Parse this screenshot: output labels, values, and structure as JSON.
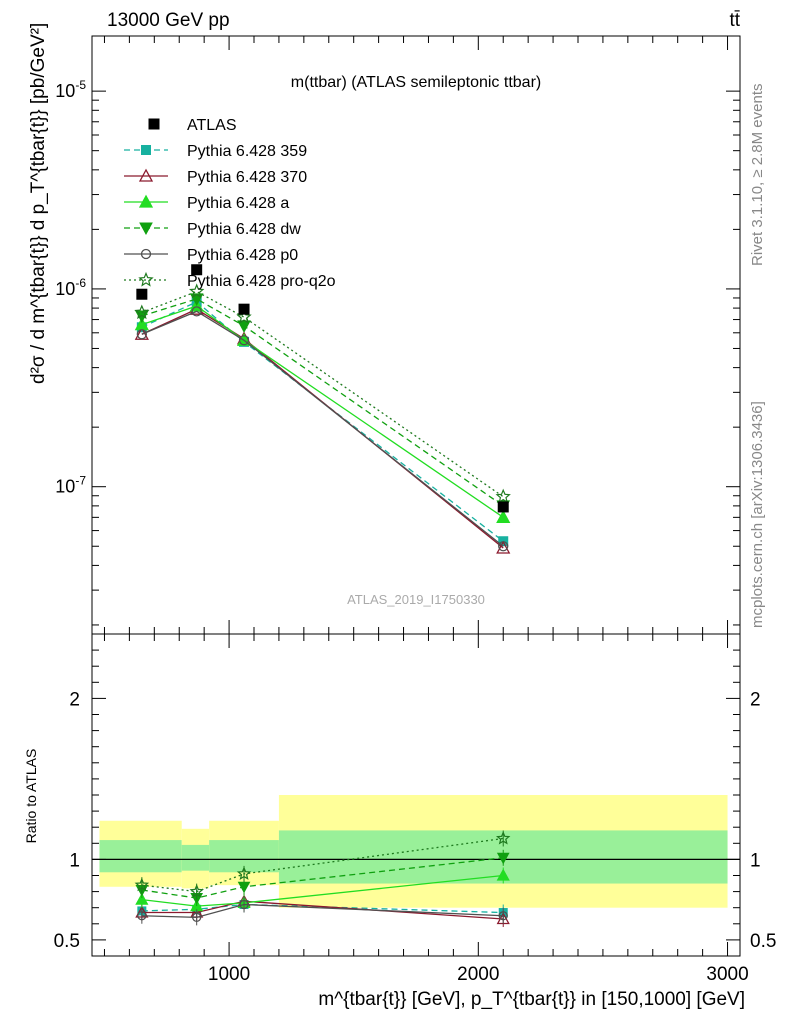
{
  "header": {
    "left": "13000 GeV pp",
    "right": "tt̄"
  },
  "side_labels": {
    "rivet": "Rivet 3.1.10, ≥ 2.8M events",
    "mcplots": "mcplots.cern.ch [arXiv:1306.3436]"
  },
  "chart_data": {
    "type": "line",
    "title": "m(ttbar) (ATLAS semileptonic ttbar)",
    "watermark": "ATLAS_2019_I1750330",
    "xlabel": "m^{tbar{t}} [GeV], p_T^{tbar{t}} in [150,1000] [GeV]",
    "ylabel": "d²σ / d m^{tbar{t}} d p_T^{tbar{t}} [pb/GeV²]",
    "ratio_ylabel": "Ratio to ATLAS",
    "xlim": [
      450,
      3050
    ],
    "ylim": [
      1.8e-08,
      1.9e-05
    ],
    "yscale": "log",
    "ratio_ylim": [
      0.4,
      2.4
    ],
    "x_ticks": [
      1000,
      2000,
      3000
    ],
    "y_ticks": [
      "10^-7",
      "10^-6",
      "10^-5"
    ],
    "ratio_ticks": [
      0.5,
      1,
      2
    ],
    "legend_position": "top-left",
    "bins": [
      [
        480,
        810
      ],
      [
        810,
        920
      ],
      [
        920,
        1200
      ],
      [
        1200,
        3000
      ]
    ],
    "x": [
      650,
      870,
      1060,
      2100
    ],
    "ratio_bands": {
      "yellow": [
        [
          0.83,
          1.24
        ],
        [
          0.82,
          1.19
        ],
        [
          0.84,
          1.24
        ],
        [
          0.7,
          1.4
        ]
      ],
      "green": [
        [
          0.92,
          1.12
        ],
        [
          0.93,
          1.09
        ],
        [
          0.92,
          1.12
        ],
        [
          0.85,
          1.18
        ]
      ]
    },
    "data": {
      "name": "ATLAS",
      "values": [
        9.4e-07,
        1.25e-06,
        7.9e-07,
        7.9e-08
      ]
    },
    "series": [
      {
        "name": "Pythia 6.428 359",
        "color": "#17b1a0",
        "line": "dashed",
        "marker": "square",
        "values": [
          6.4e-07,
          8.6e-07,
          5.4e-07,
          5.3e-08
        ],
        "ratio": [
          0.68,
          0.69,
          0.72,
          0.67
        ]
      },
      {
        "name": "Pythia 6.428 370",
        "color": "#8b1a2e",
        "line": "solid",
        "marker": "triangle-open",
        "values": [
          5.9e-07,
          7.9e-07,
          5.6e-07,
          4.9e-08
        ],
        "ratio": [
          0.67,
          0.67,
          0.74,
          0.63
        ]
      },
      {
        "name": "Pythia 6.428 a",
        "color": "#22dd22",
        "line": "solid",
        "marker": "triangle",
        "values": [
          6.6e-07,
          8.2e-07,
          5.5e-07,
          7e-08
        ],
        "ratio": [
          0.75,
          0.71,
          0.73,
          0.9
        ]
      },
      {
        "name": "Pythia 6.428 dw",
        "color": "#10a010",
        "line": "dashed",
        "marker": "triangle-down",
        "values": [
          7.3e-07,
          8.9e-07,
          6.5e-07,
          8e-08
        ],
        "ratio": [
          0.81,
          0.76,
          0.83,
          1.01
        ]
      },
      {
        "name": "Pythia 6.428 p0",
        "color": "#505050",
        "line": "solid",
        "marker": "circle-open",
        "values": [
          5.9e-07,
          7.7e-07,
          5.5e-07,
          5e-08
        ],
        "ratio": [
          0.65,
          0.64,
          0.72,
          0.65
        ]
      },
      {
        "name": "Pythia 6.428 pro-q2o",
        "color": "#1f7a1f",
        "line": "dotted",
        "marker": "star-open",
        "values": [
          7.6e-07,
          9.7e-07,
          7.2e-07,
          8.9e-08
        ],
        "ratio": [
          0.84,
          0.8,
          0.91,
          1.13
        ]
      }
    ]
  }
}
